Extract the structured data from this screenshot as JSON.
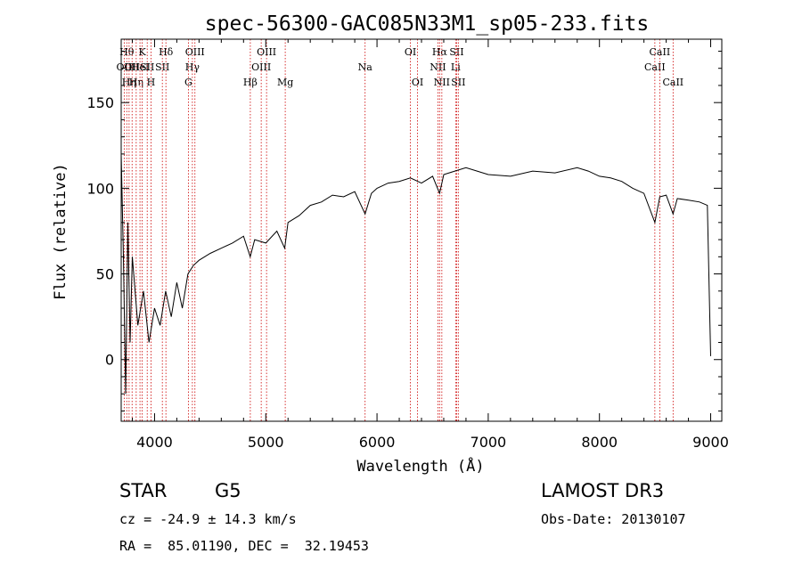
{
  "chart_data": {
    "type": "line",
    "title": "spec-56300-GAC085N33M1_sp05-233.fits",
    "xlabel": "Wavelength (Å)",
    "ylabel": "Flux (relative)",
    "xlim": [
      3700,
      9100
    ],
    "ylim": [
      -36,
      187
    ],
    "xticks": [
      4000,
      5000,
      6000,
      7000,
      8000,
      9000
    ],
    "yticks": [
      0,
      50,
      100,
      150
    ],
    "grid": false,
    "series": [
      {
        "name": "flux",
        "x": [
          3700,
          3720,
          3740,
          3760,
          3780,
          3800,
          3850,
          3900,
          3950,
          4000,
          4050,
          4100,
          4150,
          4200,
          4250,
          4300,
          4350,
          4400,
          4500,
          4600,
          4700,
          4800,
          4860,
          4900,
          5000,
          5100,
          5170,
          5200,
          5300,
          5400,
          5500,
          5600,
          5700,
          5800,
          5893,
          5950,
          6000,
          6100,
          6200,
          6300,
          6400,
          6500,
          6563,
          6600,
          6700,
          6800,
          6900,
          7000,
          7200,
          7400,
          7600,
          7800,
          7900,
          8000,
          8100,
          8200,
          8300,
          8400,
          8498,
          8542,
          8600,
          8662,
          8700,
          8800,
          8900,
          8970,
          8990,
          9000
        ],
        "y": [
          120,
          60,
          -20,
          80,
          10,
          60,
          20,
          40,
          10,
          30,
          20,
          40,
          25,
          45,
          30,
          50,
          55,
          58,
          62,
          65,
          68,
          72,
          60,
          70,
          68,
          75,
          65,
          80,
          84,
          90,
          92,
          96,
          95,
          98,
          85,
          97,
          100,
          103,
          104,
          106,
          103,
          107,
          97,
          108,
          110,
          112,
          110,
          108,
          107,
          110,
          109,
          112,
          110,
          107,
          106,
          104,
          100,
          97,
          80,
          95,
          96,
          85,
          94,
          93,
          92,
          90,
          30,
          2
        ]
      }
    ],
    "line_markers": [
      {
        "wave": 3727,
        "label": "OII",
        "row": 2
      },
      {
        "wave": 3750,
        "label": "Hθ",
        "row": 1
      },
      {
        "wave": 3771,
        "label": "Hη",
        "row": 3
      },
      {
        "wave": 3798,
        "label": "OII",
        "row": 2
      },
      {
        "wave": 3835,
        "label": "Hη",
        "row": 3
      },
      {
        "wave": 3869,
        "label": "HeI",
        "row": 2
      },
      {
        "wave": 3889,
        "label": "K",
        "row": 1
      },
      {
        "wave": 3934,
        "label": "SII",
        "row": 2
      },
      {
        "wave": 3968,
        "label": "H",
        "row": 3
      },
      {
        "wave": 4070,
        "label": "SII",
        "row": 2
      },
      {
        "wave": 4102,
        "label": "Hδ",
        "row": 1
      },
      {
        "wave": 4304,
        "label": "G",
        "row": 3
      },
      {
        "wave": 4340,
        "label": "Hγ",
        "row": 2
      },
      {
        "wave": 4363,
        "label": "OIII",
        "row": 1
      },
      {
        "wave": 4861,
        "label": "Hβ",
        "row": 3
      },
      {
        "wave": 4959,
        "label": "OIII",
        "row": 2
      },
      {
        "wave": 5007,
        "label": "OIII",
        "row": 1
      },
      {
        "wave": 5175,
        "label": "Mg",
        "row": 3
      },
      {
        "wave": 5893,
        "label": "Na",
        "row": 2
      },
      {
        "wave": 6300,
        "label": "OI",
        "row": 1
      },
      {
        "wave": 6364,
        "label": "OI",
        "row": 3
      },
      {
        "wave": 6548,
        "label": "NII",
        "row": 2
      },
      {
        "wave": 6563,
        "label": "Hα",
        "row": 1
      },
      {
        "wave": 6583,
        "label": "NII",
        "row": 3
      },
      {
        "wave": 6707,
        "label": "Li",
        "row": 2
      },
      {
        "wave": 6716,
        "label": "SII",
        "row": 1
      },
      {
        "wave": 6731,
        "label": "SII",
        "row": 3
      },
      {
        "wave": 8498,
        "label": "CaII",
        "row": 2
      },
      {
        "wave": 8542,
        "label": "CaII",
        "row": 1
      },
      {
        "wave": 8662,
        "label": "CaII",
        "row": 3
      }
    ],
    "marker_color": "#cc0000"
  },
  "info": {
    "class_label": "STAR",
    "subclass_label": "G5",
    "survey_label": "LAMOST DR3",
    "cz_text": "cz = -24.9 ± 14.3 km/s",
    "obsdate_text": "Obs-Date: 20130107",
    "radec_text": "RA =  85.01190, DEC =  32.19453"
  }
}
